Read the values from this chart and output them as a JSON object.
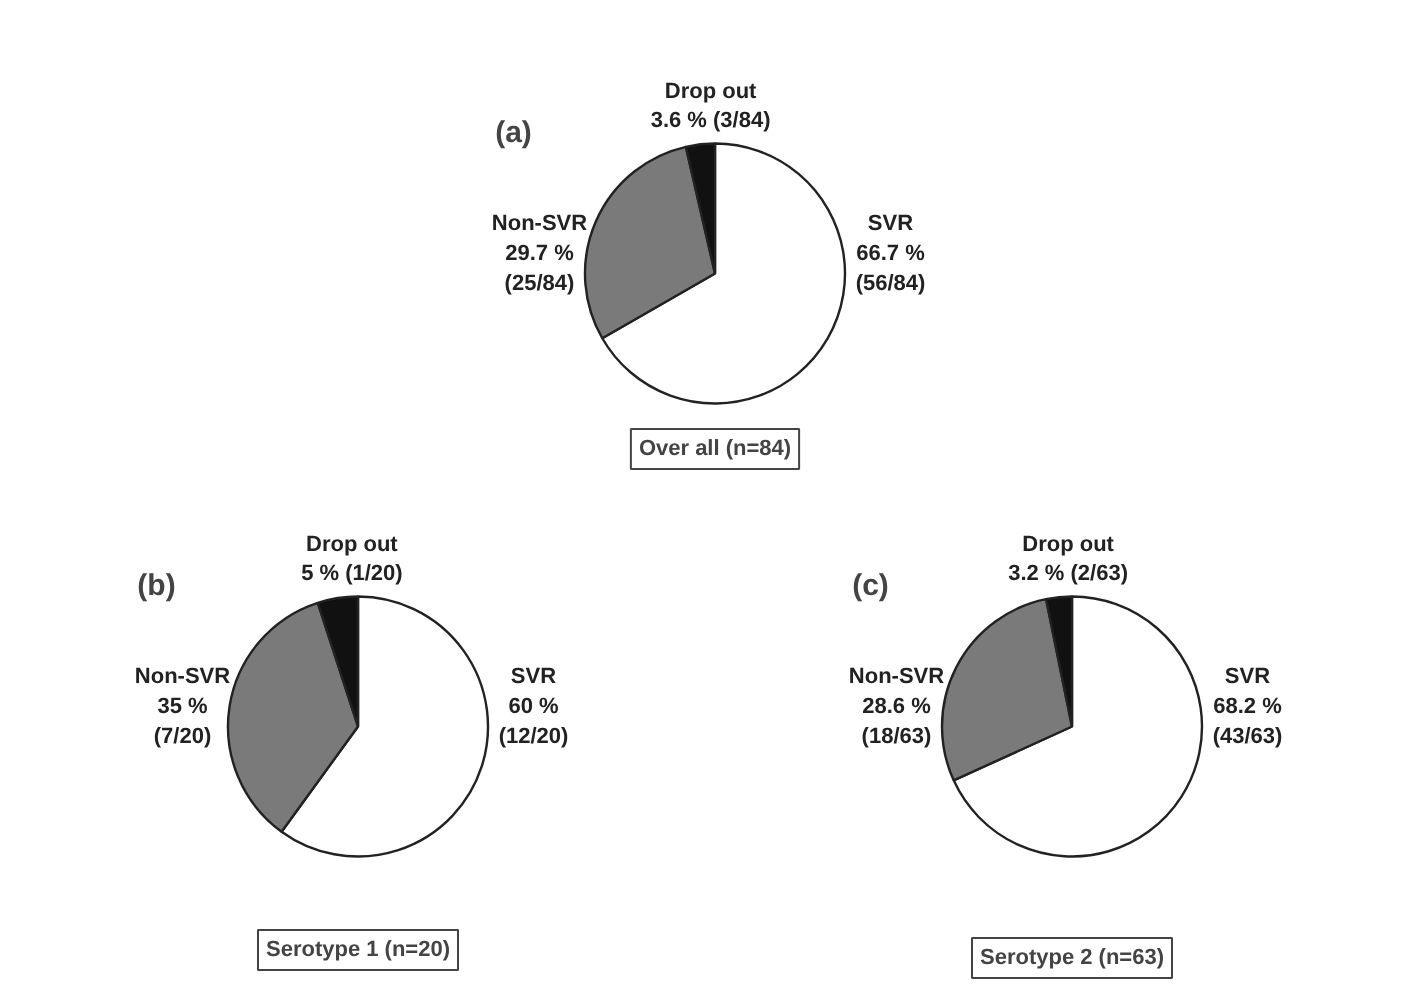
{
  "chart_data": [
    {
      "type": "pie",
      "title": "(a)",
      "categories": [
        "SVR",
        "Non-SVR",
        "Drop out"
      ],
      "values": [
        66.7,
        29.7,
        3.6
      ],
      "colors": [
        "#ffffff",
        "#7a7a7a",
        "#111111"
      ],
      "value_labels": [
        "66.7 %\n(56/84)",
        "29.7 %\n(25/84)",
        "3.6 % (3/84)"
      ],
      "annotations": [
        "Over all (n=84)"
      ]
    },
    {
      "type": "pie",
      "title": "(b)",
      "categories": [
        "SVR",
        "Non-SVR",
        "Drop out"
      ],
      "values": [
        60,
        35,
        5
      ],
      "colors": [
        "#ffffff",
        "#7a7a7a",
        "#111111"
      ],
      "value_labels": [
        "60 %\n(12/20)",
        "35 %\n(7/20)",
        "5 % (1/20)"
      ],
      "annotations": [
        "Serotype 1 (n=20)"
      ]
    },
    {
      "type": "pie",
      "title": "(c)",
      "categories": [
        "SVR",
        "Non-SVR",
        "Drop out"
      ],
      "values": [
        68.2,
        28.6,
        3.2
      ],
      "colors": [
        "#ffffff",
        "#7a7a7a",
        "#111111"
      ],
      "value_labels": [
        "68.2 %\n(43/63)",
        "28.6 %\n(18/63)",
        "3.2 % (2/63)"
      ],
      "annotations": [
        "Serotype 2 (n=63)"
      ]
    }
  ]
}
